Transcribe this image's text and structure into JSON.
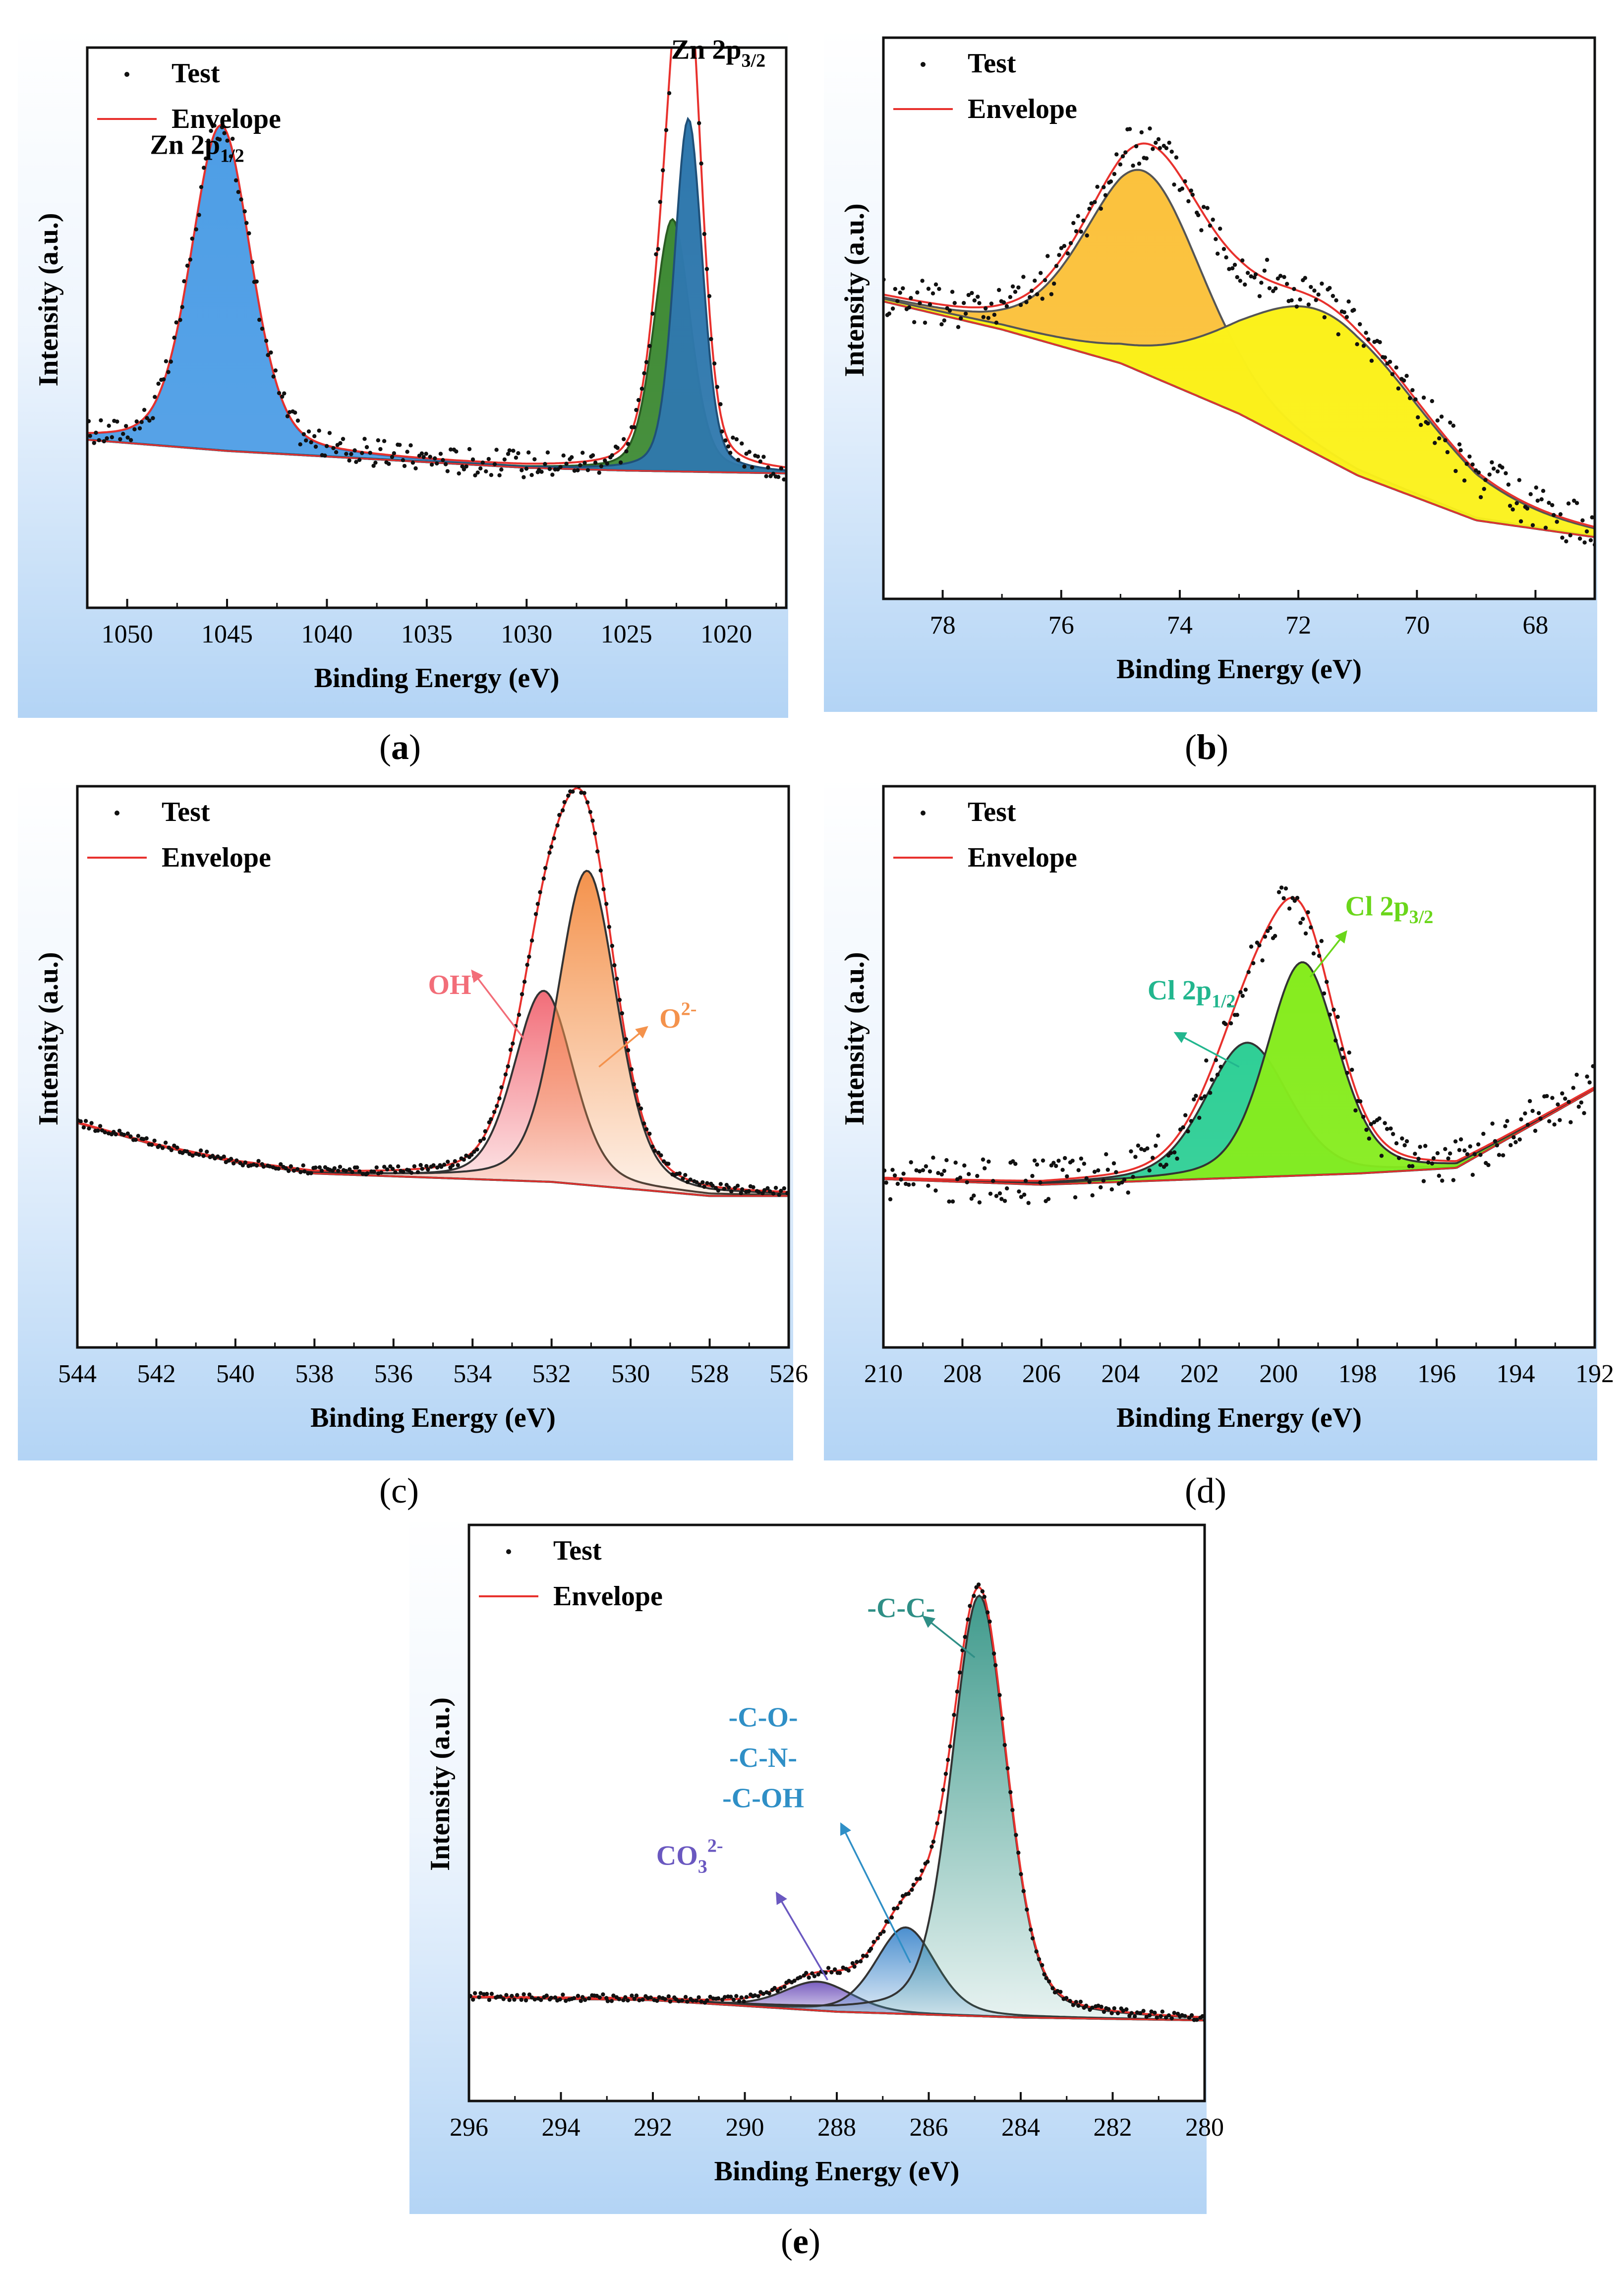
{
  "colors": {
    "envelope": "#e8312d",
    "points": "#111111",
    "axis": "#111111"
  },
  "panels": [
    {
      "id": "a",
      "caption": "a",
      "chart_data": {
        "type": "line",
        "xlabel": "Binding Energy (eV)",
        "ylabel": "Intensity (a.u.)",
        "xlim": [
          1052,
          1017
        ],
        "ylim": [
          0,
          100
        ],
        "xticks": [
          1050,
          1045,
          1040,
          1035,
          1030,
          1025,
          1020
        ],
        "legend": {
          "position": "top-left",
          "test": "Test",
          "envelope": "Envelope"
        },
        "baseline": [
          [
            1052,
            30
          ],
          [
            1045,
            28
          ],
          [
            1040,
            27
          ],
          [
            1030,
            25
          ],
          [
            1025,
            24.5
          ],
          [
            1017,
            24
          ]
        ],
        "peaks": [
          {
            "name": "Zn 2p1/2",
            "label_main": "Zn 2p",
            "label_sub": "1/2",
            "center": 1045.3,
            "height": 58,
            "width": 1.5,
            "fill": "#4e9ee6",
            "edge": "#2e6cb0",
            "label_color": "#000000",
            "label_x": 1046.5,
            "label_y": 81
          },
          {
            "name": "Zn 2p3/2 a",
            "center": 1022.7,
            "height": 45,
            "width": 0.9,
            "fill": "#3e8a34",
            "edge": "#2a5c22"
          },
          {
            "name": "Zn 2p3/2 b",
            "center": 1021.9,
            "height": 63,
            "width": 0.7,
            "fill": "#2f78ad",
            "edge": "#1f5079"
          }
        ],
        "peak_labels": [
          {
            "main": "Zn 2p",
            "sub": "3/2",
            "x": 1020.4,
            "y": 98,
            "color": "#000000"
          }
        ],
        "arrows": [],
        "noise": 2.5
      }
    },
    {
      "id": "b",
      "caption": "b",
      "chart_data": {
        "type": "line",
        "xlabel": "Binding Energy (eV)",
        "ylabel": "Intensity (a.u.)",
        "xlim": [
          79,
          67
        ],
        "ylim": [
          0,
          100
        ],
        "xticks": [
          78,
          76,
          74,
          72,
          70,
          68
        ],
        "legend": {
          "position": "top-left",
          "test": "Test",
          "envelope": "Envelope"
        },
        "baseline": [
          [
            79,
            53
          ],
          [
            77,
            48
          ],
          [
            75,
            42
          ],
          [
            73,
            33
          ],
          [
            71,
            22
          ],
          [
            69,
            14
          ],
          [
            67,
            11
          ]
        ],
        "peaks": [
          {
            "name": "peak 1",
            "center": 74.6,
            "height": 36,
            "width": 1.0,
            "fill": "#fbc23d",
            "edge": "#555555"
          },
          {
            "name": "peak 2",
            "center": 71.5,
            "height": 26,
            "width": 1.6,
            "fill": "#fbf11a",
            "edge": "#555555"
          }
        ],
        "peak_labels": [],
        "arrows": [],
        "noise": 4
      }
    },
    {
      "id": "c",
      "caption": "c",
      "chart_data": {
        "type": "line",
        "xlabel": "Binding Energy (eV)",
        "ylabel": "Intensity (a.u.)",
        "xlim": [
          544,
          526
        ],
        "ylim": [
          0,
          100
        ],
        "xticks": [
          544,
          542,
          540,
          538,
          536,
          534,
          532,
          530,
          528,
          526
        ],
        "legend": {
          "position": "top-left",
          "test": "Test",
          "envelope": "Envelope"
        },
        "baseline": [
          [
            544,
            40
          ],
          [
            542,
            36
          ],
          [
            540,
            33
          ],
          [
            538,
            31
          ],
          [
            536,
            30.5
          ],
          [
            532,
            29.5
          ],
          [
            528,
            27
          ],
          [
            526,
            27
          ]
        ],
        "peaks": [
          {
            "name": "OH-",
            "center": 532.2,
            "height": 34,
            "width": 0.75,
            "fill": "#f26d78",
            "edge": "#333333"
          },
          {
            "name": "O2-",
            "center": 531.1,
            "height": 56,
            "width": 0.75,
            "fill": "#f4924c",
            "edge": "#333333"
          }
        ],
        "peak_labels": [
          {
            "main": "OH",
            "sup": "-",
            "x": 534.5,
            "y": 63,
            "color": "#f26d78"
          },
          {
            "main": "O",
            "sup": "2-",
            "x": 528.8,
            "y": 57,
            "color": "#f4924c"
          }
        ],
        "arrows": [
          {
            "x1": 532.7,
            "y1": 55,
            "x2": 534.0,
            "y2": 67,
            "color": "#f26d78"
          },
          {
            "x1": 530.8,
            "y1": 50,
            "x2": 529.6,
            "y2": 57,
            "color": "#f4924c"
          }
        ],
        "noise": 0.7
      }
    },
    {
      "id": "d",
      "caption": "d",
      "chart_data": {
        "type": "line",
        "xlabel": "Binding Energy (eV)",
        "ylabel": "Intensity (a.u.)",
        "xlim": [
          210,
          192
        ],
        "ylim": [
          0,
          100
        ],
        "xticks": [
          210,
          208,
          206,
          204,
          202,
          200,
          198,
          196,
          194,
          192
        ],
        "legend": {
          "position": "top-left",
          "test": "Test",
          "envelope": "Envelope"
        },
        "baseline": [
          [
            210,
            30
          ],
          [
            206,
            29
          ],
          [
            202,
            30
          ],
          [
            198,
            31
          ],
          [
            195.5,
            32
          ],
          [
            192,
            46
          ]
        ],
        "peaks": [
          {
            "name": "Cl 2p1/2",
            "center": 200.8,
            "height": 24,
            "width": 1.05,
            "fill": "#2fcf96",
            "edge": "#333333"
          },
          {
            "name": "Cl 2p3/2",
            "center": 199.4,
            "height": 38,
            "width": 0.9,
            "fill": "#86ec1e",
            "edge": "#333333"
          }
        ],
        "peak_labels": [
          {
            "main": "Cl 2p",
            "sub": "1/2",
            "x": 202.2,
            "y": 62,
            "color": "#22b68e"
          },
          {
            "main": "Cl 2p",
            "sub": "3/2",
            "x": 197.2,
            "y": 77,
            "color": "#6ad61a"
          }
        ],
        "arrows": [
          {
            "x1": 201.0,
            "y1": 50,
            "x2": 202.6,
            "y2": 56,
            "color": "#22b68e"
          },
          {
            "x1": 199.2,
            "y1": 66,
            "x2": 198.3,
            "y2": 74,
            "color": "#6ad61a"
          }
        ],
        "noise": 4
      }
    },
    {
      "id": "e",
      "caption": "e",
      "chart_data": {
        "type": "line",
        "xlabel": "Binding Energy (eV)",
        "ylabel": "Intensity (a.u.)",
        "xlim": [
          296,
          280
        ],
        "ylim": [
          0,
          100
        ],
        "xticks": [
          296,
          294,
          292,
          290,
          288,
          286,
          284,
          282,
          280
        ],
        "legend": {
          "position": "top-left",
          "test": "Test",
          "envelope": "Envelope"
        },
        "baseline": [
          [
            296,
            18
          ],
          [
            292,
            17.5
          ],
          [
            290,
            16.5
          ],
          [
            288,
            15.5
          ],
          [
            284,
            14.5
          ],
          [
            280,
            14
          ]
        ],
        "peaks": [
          {
            "name": "CO3 2-",
            "center": 288.4,
            "height": 5,
            "width": 0.75,
            "fill": "#7a5fc0",
            "edge": "#333333"
          },
          {
            "name": "-C-O- / -C-N- / -C-OH",
            "center": 286.5,
            "height": 15,
            "width": 0.65,
            "fill": "#4b8fcf",
            "edge": "#333333"
          },
          {
            "name": "-C-C-",
            "center": 284.9,
            "height": 73,
            "width": 0.6,
            "fill": "#3f9a8c",
            "edge": "#333333"
          }
        ],
        "peak_labels": [
          {
            "main": "-C-C-",
            "x": 286.6,
            "y": 84,
            "color": "#2f8f86"
          },
          {
            "main": "-C-O-",
            "x": 289.6,
            "y": 65,
            "color": "#2f8fc6"
          },
          {
            "main": "-C-N-",
            "x": 289.6,
            "y": 58,
            "color": "#2f8fc6"
          },
          {
            "main": "-C-OH",
            "x": 289.6,
            "y": 51,
            "color": "#2f8fc6"
          },
          {
            "main": "CO",
            "sub": "3",
            "sup": "2-",
            "x": 291.2,
            "y": 41,
            "color": "#6a58c0"
          }
        ],
        "arrows": [
          {
            "x1": 285.0,
            "y1": 77,
            "x2": 286.1,
            "y2": 84,
            "color": "#2f8f86"
          },
          {
            "x1": 286.4,
            "y1": 24,
            "x2": 287.9,
            "y2": 48,
            "color": "#2f8fc6"
          },
          {
            "x1": 288.2,
            "y1": 21,
            "x2": 289.3,
            "y2": 36,
            "color": "#6a58c0"
          }
        ],
        "noise": 0.6
      }
    }
  ]
}
